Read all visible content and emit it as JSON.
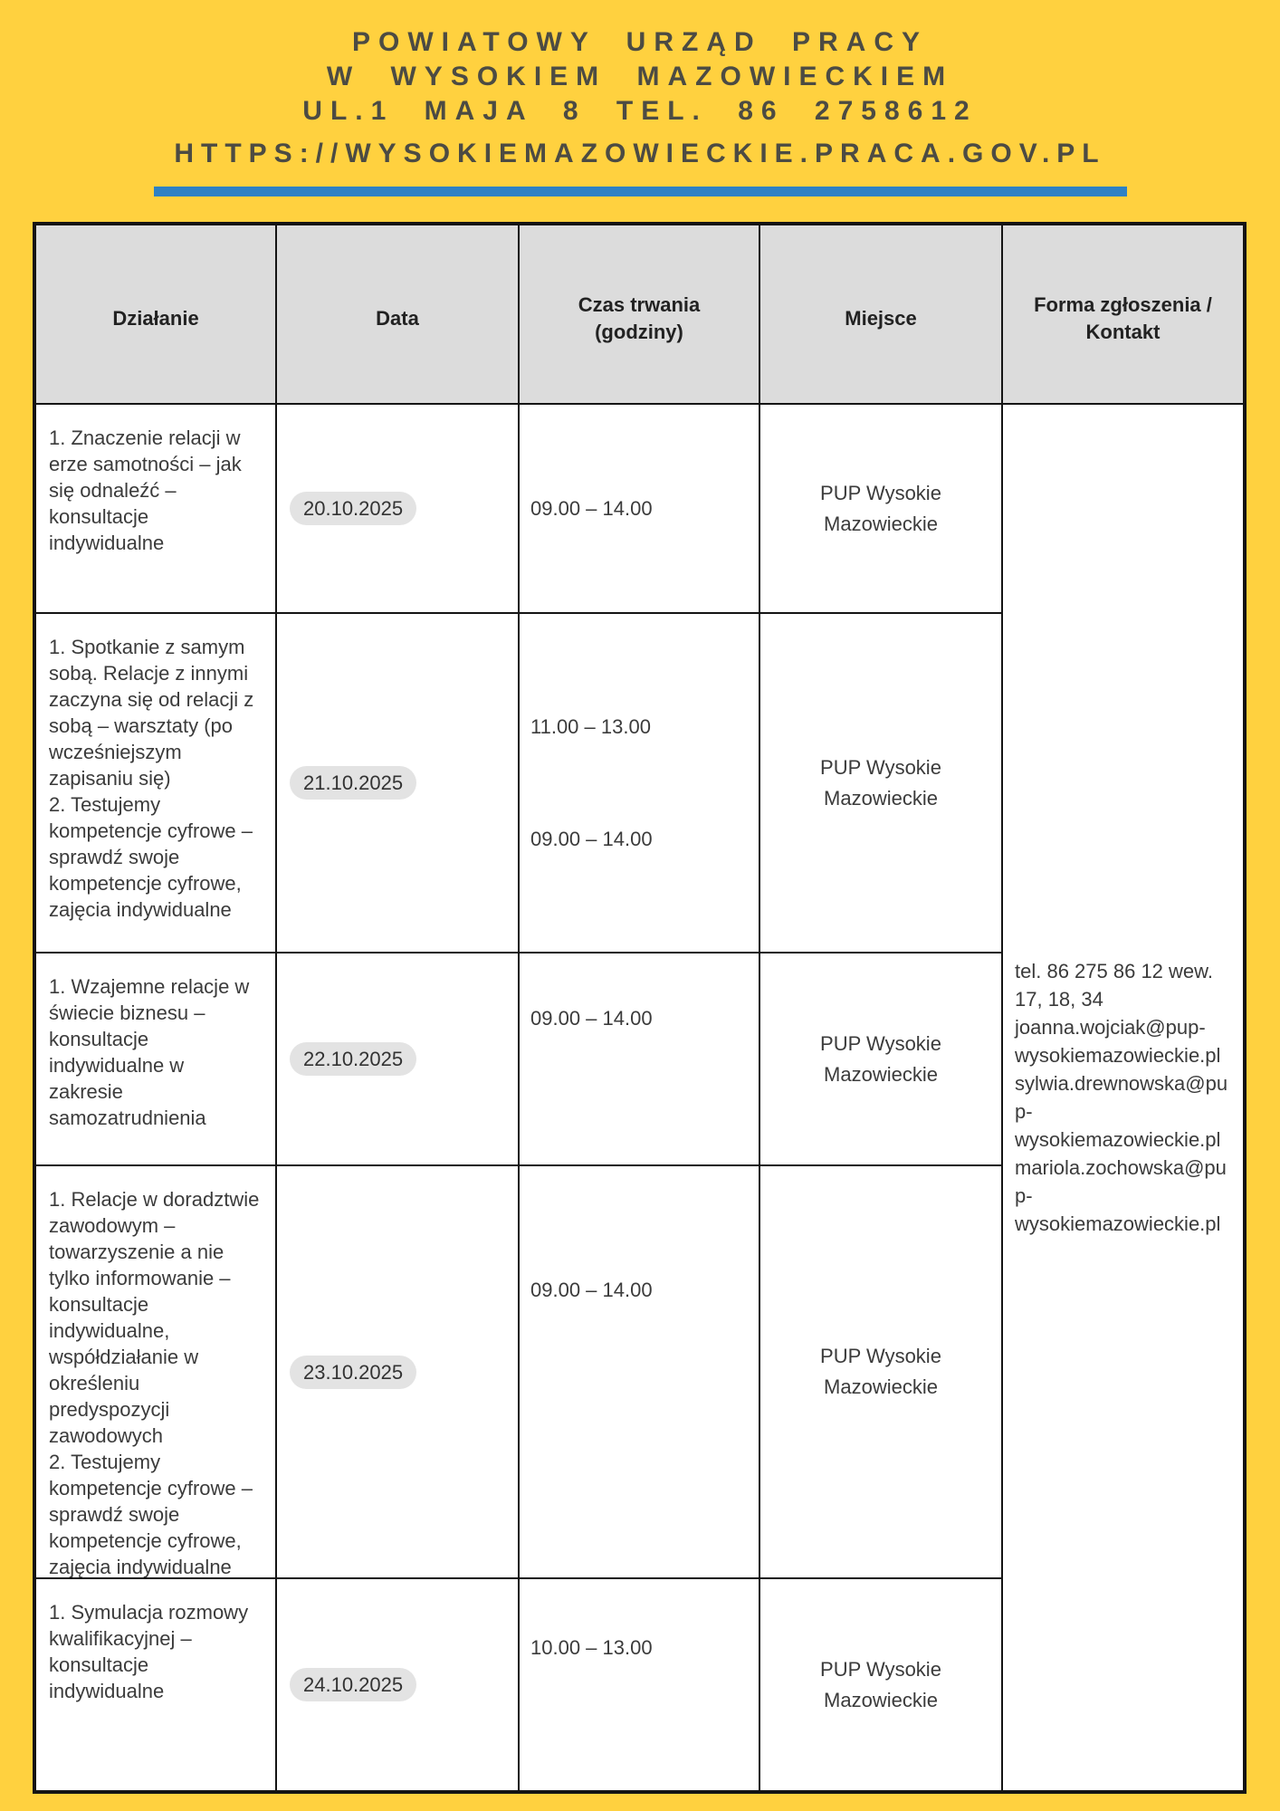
{
  "page": {
    "colors": {
      "background_yellow": "#FFD13F",
      "header_text": "#4C4B43",
      "divider_blue": "#2E81C4",
      "table_border": "#141414",
      "table_header_bg": "#DCDCDC",
      "body_text": "#3B3B3B",
      "date_pill_bg": "#E3E3E3"
    },
    "header": {
      "lines": [
        "POWIATOWY URZĄD PRACY",
        "W WYSOKIEM MAZOWIECKIEM",
        "UL.1 MAJA 8 TEL. 86 2758612",
        "HTTPS://WYSOKIEMAZOWIECKIE.PRACA.GOV.PL"
      ]
    }
  },
  "table": {
    "columns": [
      "Działanie",
      "Data",
      "Czas trwania\n(godziny)",
      "Miejsce",
      "Forma zgłoszenia /\nKontakt"
    ],
    "rows": [
      {
        "activity": "1. Znaczenie relacji w\nerze samotności – jak\nsię odnaleźć –\nkonsultacje\nindywidualne",
        "date": "20.10.2025",
        "time": "09.00 – 14.00",
        "place": "PUP Wysokie\nMazowieckie"
      },
      {
        "activity": "1. Spotkanie z samym\nsobą. Relacje z innymi\nzaczyna się od relacji z\nsobą – warsztaty (po\nwcześniejszym\nzapisaniu się)\n2. Testujemy\nkompetencje cyfrowe –\nsprawdź swoje\nkompetencje cyfrowe,\nzajęcia indywidualne",
        "date": "21.10.2025",
        "time": "11.00 – 13.00\n\n\n\n09.00 – 14.00",
        "place": "PUP Wysokie\nMazowieckie"
      },
      {
        "activity": "1. Wzajemne relacje w\nświecie biznesu –\nkonsultacje\nindywidualne w\nzakresie\nsamozatrudnienia",
        "date": "22.10.2025",
        "time": "09.00 – 14.00",
        "place": "PUP Wysokie\nMazowieckie"
      },
      {
        "activity": "1. Relacje w doradztwie\nzawodowym –\ntowarzyszenie a nie\ntylko informowanie –\nkonsultacje\nindywidualne,\nwspółdziałanie w\nokreśleniu\npredyspozycji\nzawodowych\n 2. Testujemy\nkompetencje cyfrowe –\nsprawdź swoje\nkompetencje cyfrowe,\nzajęcia indywidualne",
        "date": "23.10.2025",
        "time": "09.00 – 14.00",
        "place": "PUP Wysokie\nMazowieckie"
      },
      {
        "activity": "1. Symulacja rozmowy\nkwalifikacyjnej –\nkonsultacje\nindywidualne",
        "date": "24.10.2025",
        "time": "10.00 – 13.00",
        "place": "PUP Wysokie\nMazowieckie"
      }
    ],
    "contact": "tel. 86 275 86 12 wew.\n17, 18, 34\njoanna.wojciak@pup-\nwysokiemazowieckie.pl\nsylwia.drewnowska@pu\np-\nwysokiemazowieckie.pl\nmariola.zochowska@pu\np-\nwysokiemazowieckie.pl"
  }
}
